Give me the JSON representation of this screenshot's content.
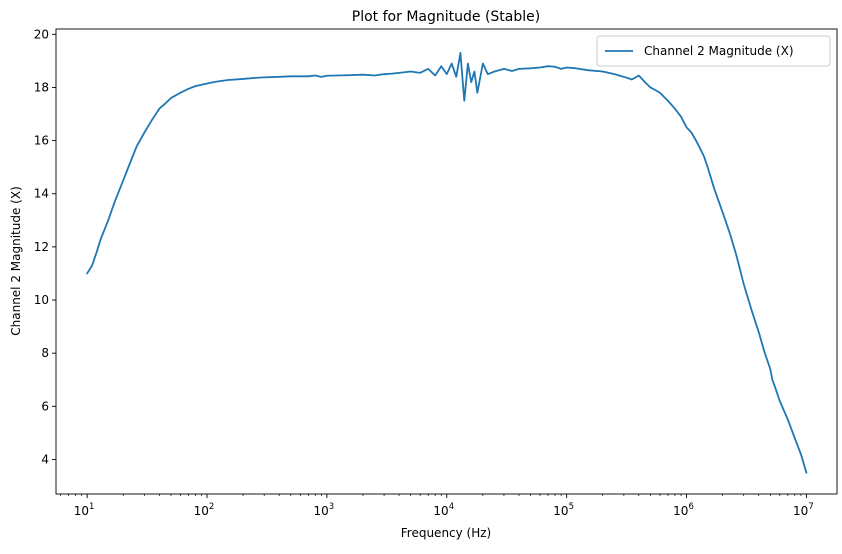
{
  "chart_data": {
    "type": "line",
    "title": "Plot for Magnitude (Stable)",
    "xlabel": "Frequency (Hz)",
    "ylabel": "Channel 2 Magnitude (X)",
    "xscale": "log",
    "xlim": [
      5.5,
      18000000
    ],
    "ylim": [
      2.7,
      20.2
    ],
    "grid": false,
    "legend_position": "top-right",
    "x_ticks": [
      {
        "base": "10",
        "exp": "1"
      },
      {
        "base": "10",
        "exp": "2"
      },
      {
        "base": "10",
        "exp": "3"
      },
      {
        "base": "10",
        "exp": "4"
      },
      {
        "base": "10",
        "exp": "5"
      },
      {
        "base": "10",
        "exp": "6"
      },
      {
        "base": "10",
        "exp": "7"
      }
    ],
    "y_ticks": [
      "4",
      "6",
      "8",
      "10",
      "12",
      "14",
      "16",
      "18",
      "20"
    ],
    "colors": {
      "series": "#1f77b4"
    },
    "series": [
      {
        "name": "Channel 2 Magnitude (X)",
        "x": [
          10,
          11,
          12,
          13,
          15,
          17,
          20,
          23,
          26,
          30,
          35,
          40,
          45,
          50,
          60,
          70,
          80,
          90,
          100,
          120,
          150,
          200,
          250,
          300,
          400,
          500,
          600,
          700,
          800,
          900,
          1000,
          1200,
          1500,
          2000,
          2500,
          3000,
          3500,
          4000,
          5000,
          6000,
          7000,
          8000,
          9000,
          10000,
          11000,
          12000,
          13000,
          14000,
          15000,
          16000,
          17000,
          18000,
          20000,
          22000,
          25000,
          30000,
          35000,
          40000,
          50000,
          60000,
          70000,
          80000,
          90000,
          100000,
          120000,
          150000,
          200000,
          250000,
          300000,
          350000,
          400000,
          450000,
          500000,
          550000,
          600000,
          700000,
          800000,
          900000,
          1000000,
          1100000,
          1200000,
          1300000,
          1400000,
          1500000,
          1700000,
          2000000,
          2300000,
          2600000,
          3000000,
          3500000,
          4000000,
          4500000,
          5000000,
          5200000,
          5500000,
          6000000,
          7000000,
          8000000,
          9000000,
          10000000
        ],
        "values": [
          11.0,
          11.3,
          11.8,
          12.3,
          13.0,
          13.7,
          14.5,
          15.2,
          15.8,
          16.3,
          16.8,
          17.2,
          17.4,
          17.6,
          17.8,
          17.95,
          18.05,
          18.1,
          18.15,
          18.22,
          18.28,
          18.32,
          18.36,
          18.38,
          18.4,
          18.42,
          18.42,
          18.42,
          18.45,
          18.4,
          18.44,
          18.45,
          18.46,
          18.48,
          18.45,
          18.5,
          18.52,
          18.55,
          18.6,
          18.55,
          18.7,
          18.45,
          18.8,
          18.5,
          18.9,
          18.4,
          19.3,
          17.5,
          18.9,
          18.2,
          18.6,
          17.8,
          18.9,
          18.5,
          18.6,
          18.7,
          18.62,
          18.7,
          18.72,
          18.75,
          18.8,
          18.78,
          18.7,
          18.75,
          18.72,
          18.65,
          18.6,
          18.5,
          18.4,
          18.3,
          18.45,
          18.2,
          18.0,
          17.9,
          17.8,
          17.5,
          17.2,
          16.9,
          16.5,
          16.3,
          16.0,
          15.7,
          15.4,
          15.0,
          14.2,
          13.3,
          12.5,
          11.7,
          10.6,
          9.6,
          8.8,
          8.0,
          7.4,
          7.0,
          6.7,
          6.2,
          5.5,
          4.8,
          4.2,
          3.5
        ]
      }
    ]
  }
}
